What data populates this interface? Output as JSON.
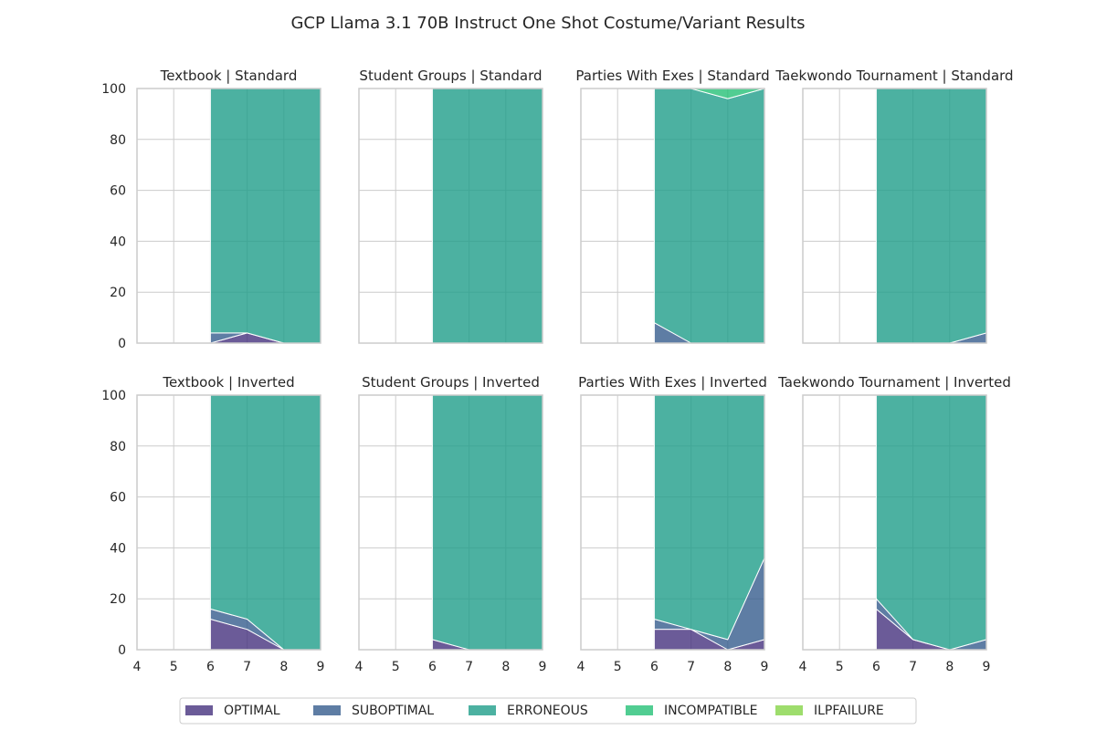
{
  "figure": {
    "title": "GCP Llama 3.1 70B Instruct One Shot Costume/Variant Results"
  },
  "colors": {
    "OPTIMAL": "#46327e",
    "SUBOPTIMAL": "#365c8d",
    "ERRONEOUS": "#1f9e89",
    "INCOMPATIBLE": "#26c177",
    "ILPFAILURE": "#86d549",
    "grid": "#cccccc",
    "spine": "#cccccc"
  },
  "legend": {
    "placement": "bottom-center",
    "items": [
      "OPTIMAL",
      "SUBOPTIMAL",
      "ERRONEOUS",
      "INCOMPATIBLE",
      "ILPFAILURE"
    ]
  },
  "chart_data": [
    {
      "type": "area",
      "stacked": true,
      "title": "Textbook | Standard",
      "x": [
        6,
        7,
        8,
        9
      ],
      "xlim": [
        4,
        9
      ],
      "ylim": [
        0,
        100
      ],
      "xticks": [
        "4",
        "5",
        "6",
        "7",
        "8",
        "9"
      ],
      "yticks": [
        "0",
        "20",
        "40",
        "60",
        "80",
        "100"
      ],
      "grid": true,
      "series": [
        {
          "name": "OPTIMAL",
          "values": [
            0,
            4,
            0,
            0
          ]
        },
        {
          "name": "SUBOPTIMAL",
          "values": [
            4,
            0,
            0,
            0
          ]
        },
        {
          "name": "ERRONEOUS",
          "values": [
            96,
            96,
            100,
            100
          ]
        },
        {
          "name": "INCOMPATIBLE",
          "values": [
            0,
            0,
            0,
            0
          ]
        },
        {
          "name": "ILPFAILURE",
          "values": [
            0,
            0,
            0,
            0
          ]
        }
      ]
    },
    {
      "type": "area",
      "stacked": true,
      "title": "Student Groups | Standard",
      "x": [
        6,
        7,
        8,
        9
      ],
      "xlim": [
        4,
        9
      ],
      "ylim": [
        0,
        100
      ],
      "xticks": [
        "4",
        "5",
        "6",
        "7",
        "8",
        "9"
      ],
      "yticks": [
        "0",
        "20",
        "40",
        "60",
        "80",
        "100"
      ],
      "grid": true,
      "series": [
        {
          "name": "OPTIMAL",
          "values": [
            0,
            0,
            0,
            0
          ]
        },
        {
          "name": "SUBOPTIMAL",
          "values": [
            0,
            0,
            0,
            0
          ]
        },
        {
          "name": "ERRONEOUS",
          "values": [
            100,
            100,
            100,
            100
          ]
        },
        {
          "name": "INCOMPATIBLE",
          "values": [
            0,
            0,
            0,
            0
          ]
        },
        {
          "name": "ILPFAILURE",
          "values": [
            0,
            0,
            0,
            0
          ]
        }
      ]
    },
    {
      "type": "area",
      "stacked": true,
      "title": "Parties With Exes | Standard",
      "x": [
        6,
        7,
        8,
        9
      ],
      "xlim": [
        4,
        9
      ],
      "ylim": [
        0,
        100
      ],
      "xticks": [
        "4",
        "5",
        "6",
        "7",
        "8",
        "9"
      ],
      "yticks": [
        "0",
        "20",
        "40",
        "60",
        "80",
        "100"
      ],
      "grid": true,
      "series": [
        {
          "name": "OPTIMAL",
          "values": [
            0,
            0,
            0,
            0
          ]
        },
        {
          "name": "SUBOPTIMAL",
          "values": [
            8,
            0,
            0,
            0
          ]
        },
        {
          "name": "ERRONEOUS",
          "values": [
            92,
            100,
            96,
            100
          ]
        },
        {
          "name": "INCOMPATIBLE",
          "values": [
            0,
            0,
            4,
            0
          ]
        },
        {
          "name": "ILPFAILURE",
          "values": [
            0,
            0,
            0,
            0
          ]
        }
      ]
    },
    {
      "type": "area",
      "stacked": true,
      "title": "Taekwondo Tournament | Standard",
      "x": [
        6,
        7,
        8,
        9
      ],
      "xlim": [
        4,
        9
      ],
      "ylim": [
        0,
        100
      ],
      "xticks": [
        "4",
        "5",
        "6",
        "7",
        "8",
        "9"
      ],
      "yticks": [
        "0",
        "20",
        "40",
        "60",
        "80",
        "100"
      ],
      "grid": true,
      "series": [
        {
          "name": "OPTIMAL",
          "values": [
            0,
            0,
            0,
            0
          ]
        },
        {
          "name": "SUBOPTIMAL",
          "values": [
            0,
            0,
            0,
            4
          ]
        },
        {
          "name": "ERRONEOUS",
          "values": [
            100,
            100,
            100,
            96
          ]
        },
        {
          "name": "INCOMPATIBLE",
          "values": [
            0,
            0,
            0,
            0
          ]
        },
        {
          "name": "ILPFAILURE",
          "values": [
            0,
            0,
            0,
            0
          ]
        }
      ]
    },
    {
      "type": "area",
      "stacked": true,
      "title": "Textbook | Inverted",
      "x": [
        6,
        7,
        8,
        9
      ],
      "xlim": [
        4,
        9
      ],
      "ylim": [
        0,
        100
      ],
      "xticks": [
        "4",
        "5",
        "6",
        "7",
        "8",
        "9"
      ],
      "yticks": [
        "0",
        "20",
        "40",
        "60",
        "80",
        "100"
      ],
      "grid": true,
      "series": [
        {
          "name": "OPTIMAL",
          "values": [
            12,
            8,
            0,
            0
          ]
        },
        {
          "name": "SUBOPTIMAL",
          "values": [
            4,
            4,
            0,
            0
          ]
        },
        {
          "name": "ERRONEOUS",
          "values": [
            84,
            88,
            100,
            100
          ]
        },
        {
          "name": "INCOMPATIBLE",
          "values": [
            0,
            0,
            0,
            0
          ]
        },
        {
          "name": "ILPFAILURE",
          "values": [
            0,
            0,
            0,
            0
          ]
        }
      ]
    },
    {
      "type": "area",
      "stacked": true,
      "title": "Student Groups | Inverted",
      "x": [
        6,
        7,
        8,
        9
      ],
      "xlim": [
        4,
        9
      ],
      "ylim": [
        0,
        100
      ],
      "xticks": [
        "4",
        "5",
        "6",
        "7",
        "8",
        "9"
      ],
      "yticks": [
        "0",
        "20",
        "40",
        "60",
        "80",
        "100"
      ],
      "grid": true,
      "series": [
        {
          "name": "OPTIMAL",
          "values": [
            4,
            0,
            0,
            0
          ]
        },
        {
          "name": "SUBOPTIMAL",
          "values": [
            0,
            0,
            0,
            0
          ]
        },
        {
          "name": "ERRONEOUS",
          "values": [
            96,
            100,
            100,
            100
          ]
        },
        {
          "name": "INCOMPATIBLE",
          "values": [
            0,
            0,
            0,
            0
          ]
        },
        {
          "name": "ILPFAILURE",
          "values": [
            0,
            0,
            0,
            0
          ]
        }
      ]
    },
    {
      "type": "area",
      "stacked": true,
      "title": "Parties With Exes | Inverted",
      "x": [
        6,
        7,
        8,
        9
      ],
      "xlim": [
        4,
        9
      ],
      "ylim": [
        0,
        100
      ],
      "xticks": [
        "4",
        "5",
        "6",
        "7",
        "8",
        "9"
      ],
      "yticks": [
        "0",
        "20",
        "40",
        "60",
        "80",
        "100"
      ],
      "grid": true,
      "series": [
        {
          "name": "OPTIMAL",
          "values": [
            8,
            8,
            0,
            4
          ]
        },
        {
          "name": "SUBOPTIMAL",
          "values": [
            4,
            0,
            4,
            32
          ]
        },
        {
          "name": "ERRONEOUS",
          "values": [
            88,
            92,
            96,
            64
          ]
        },
        {
          "name": "INCOMPATIBLE",
          "values": [
            0,
            0,
            0,
            0
          ]
        },
        {
          "name": "ILPFAILURE",
          "values": [
            0,
            0,
            0,
            0
          ]
        }
      ]
    },
    {
      "type": "area",
      "stacked": true,
      "title": "Taekwondo Tournament | Inverted",
      "x": [
        6,
        7,
        8,
        9
      ],
      "xlim": [
        4,
        9
      ],
      "ylim": [
        0,
        100
      ],
      "xticks": [
        "4",
        "5",
        "6",
        "7",
        "8",
        "9"
      ],
      "yticks": [
        "0",
        "20",
        "40",
        "60",
        "80",
        "100"
      ],
      "grid": true,
      "series": [
        {
          "name": "OPTIMAL",
          "values": [
            16,
            4,
            0,
            0
          ]
        },
        {
          "name": "SUBOPTIMAL",
          "values": [
            4,
            0,
            0,
            4
          ]
        },
        {
          "name": "ERRONEOUS",
          "values": [
            80,
            96,
            100,
            96
          ]
        },
        {
          "name": "INCOMPATIBLE",
          "values": [
            0,
            0,
            0,
            0
          ]
        },
        {
          "name": "ILPFAILURE",
          "values": [
            0,
            0,
            0,
            0
          ]
        }
      ]
    }
  ]
}
